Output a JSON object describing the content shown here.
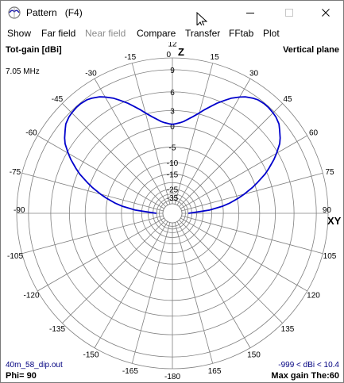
{
  "window": {
    "title": "Pattern   (F4)",
    "controls": {
      "minimize": "minimize-icon",
      "maximize": "maximize-icon",
      "close": "close-icon"
    }
  },
  "menu": {
    "items": [
      {
        "label": "Show",
        "enabled": true
      },
      {
        "label": "Far field",
        "enabled": true
      },
      {
        "label": "Near field",
        "enabled": false
      },
      {
        "label": "Compare",
        "enabled": true
      },
      {
        "label": "Transfer",
        "enabled": true
      },
      {
        "label": "FFtab",
        "enabled": true
      },
      {
        "label": "Plot",
        "enabled": true
      }
    ]
  },
  "plot": {
    "top_left": "Tot-gain [dBi]",
    "frequency": "7.05 MHz",
    "top_right": "Vertical plane",
    "z_label": "Z",
    "xy_label": "XY",
    "file_name": "40m_58_dip.out",
    "phi": "Phi= 90",
    "range_text": "-999 < dBi < 10.4",
    "max_gain": "Max gain The:60",
    "colors": {
      "grid": "#808080",
      "pattern": "#0000cc",
      "info_text": "#000080",
      "label_text": "#000000"
    }
  },
  "chart_data": {
    "type": "polar",
    "plane": "vertical",
    "angle_labels": [
      "0",
      "15",
      "30",
      "45",
      "60",
      "75",
      "90",
      "105",
      "120",
      "135",
      "150",
      "165",
      "-180",
      "-165",
      "-150",
      "-135",
      "-120",
      "-105",
      "-90",
      "-75",
      "-60",
      "-45",
      "-30",
      "-15"
    ],
    "radial_tick_labels": [
      "15",
      "12",
      "9",
      "6",
      "3",
      "0",
      "-5",
      "-10",
      "-15",
      "-25",
      "-35"
    ],
    "radial_rings_dBi": [
      10.4,
      9,
      6,
      3,
      0,
      -5,
      -10,
      -15,
      -20,
      -25,
      -30,
      -35,
      -40,
      -50
    ],
    "series": [
      {
        "angle_deg": [
          -90,
          -88,
          -85,
          -82,
          -80,
          -77,
          -75,
          -72,
          -70,
          -67,
          -65,
          -62,
          -60,
          -57,
          -55,
          -52,
          -50,
          -47,
          -45,
          -42,
          -40,
          -37,
          -35,
          -32,
          -30,
          -27,
          -25,
          -22,
          -20,
          -17,
          -15,
          -12,
          -10,
          -7,
          -5,
          -2,
          0,
          2,
          5,
          7,
          10,
          12,
          15,
          17,
          20,
          22,
          25,
          27,
          30,
          32,
          35,
          37,
          40,
          42,
          45,
          47,
          50,
          52,
          55,
          57,
          60,
          62,
          65,
          67,
          70,
          72,
          75,
          77,
          80,
          82,
          85,
          88,
          90
        ],
        "gain_dBi": [
          -34.6,
          -28,
          -16,
          -10.2,
          -7.6,
          -4.6,
          -2.9,
          -0.6,
          0.7,
          2.6,
          3.6,
          5,
          5.8,
          6.9,
          7.4,
          8.0,
          8.4,
          8.7,
          8.8,
          8.9,
          8.9,
          8.8,
          8.6,
          8.2,
          7.8,
          7.1,
          6.5,
          5.6,
          4.9,
          3.9,
          3.2,
          2.3,
          1.8,
          1.1,
          0.8,
          0.5,
          0.4,
          0.5,
          0.8,
          1.1,
          1.8,
          2.3,
          3.2,
          3.9,
          4.9,
          5.6,
          6.5,
          7.1,
          7.8,
          8.2,
          8.6,
          8.8,
          8.9,
          8.9,
          8.8,
          8.7,
          8.4,
          8.0,
          7.4,
          6.9,
          5.8,
          5,
          3.6,
          2.6,
          0.7,
          -0.6,
          -2.9,
          -4.6,
          -7.6,
          -10.2,
          -16,
          -28,
          -34.6
        ]
      }
    ],
    "grid": true
  }
}
